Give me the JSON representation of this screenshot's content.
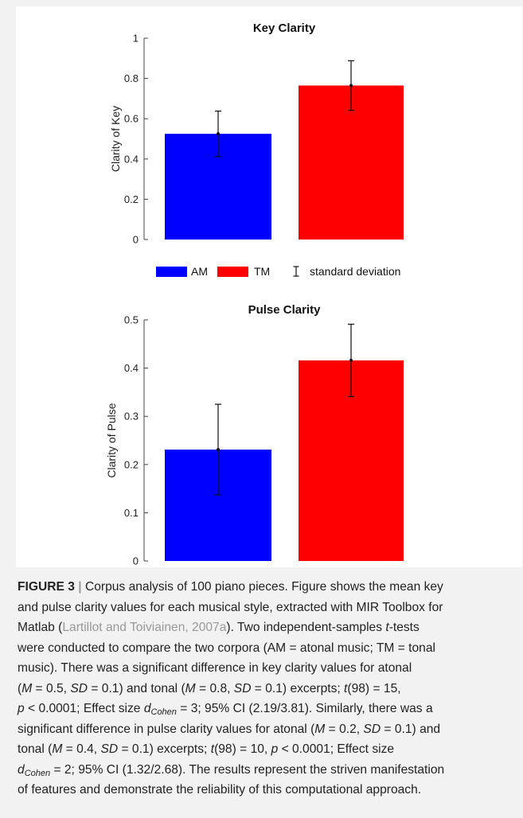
{
  "chart_data": [
    {
      "type": "bar",
      "title": "Key Clarity",
      "xlabel": "",
      "ylabel": "Clarity of Key",
      "categories": [
        "AM",
        "TM"
      ],
      "values": [
        0.525,
        0.765
      ],
      "error": [
        0.113,
        0.123
      ],
      "colors": [
        "#0000ff",
        "#ff0000"
      ],
      "ylim": [
        0,
        1
      ],
      "yticks": [
        0,
        0.2,
        0.4,
        0.6,
        0.8,
        1
      ],
      "ytick_labels": [
        "0",
        "0.2",
        "0.4",
        "0.6",
        "0.8",
        "1"
      ],
      "grid": false
    },
    {
      "type": "bar",
      "title": "Pulse Clarity",
      "xlabel": "",
      "ylabel": "Clarity of Pulse",
      "categories": [
        "AM",
        "TM"
      ],
      "values": [
        0.231,
        0.416
      ],
      "error": [
        0.094,
        0.075
      ],
      "colors": [
        "#0000ff",
        "#ff0000"
      ],
      "ylim": [
        0,
        0.5
      ],
      "yticks": [
        0,
        0.1,
        0.2,
        0.3,
        0.4,
        0.5
      ],
      "ytick_labels": [
        "0",
        "0.1",
        "0.2",
        "0.3",
        "0.4",
        "0.5"
      ],
      "grid": false
    }
  ],
  "legend": {
    "placement": "between panels",
    "items": [
      {
        "label": "AM",
        "color": "#0000ff",
        "kind": "patch"
      },
      {
        "label": "TM",
        "color": "#ff0000",
        "kind": "patch"
      },
      {
        "label": "standard deviation",
        "kind": "errorbar"
      }
    ]
  },
  "caption": {
    "label": "FIGURE 3",
    "separator": "|",
    "lines": [
      [
        {
          "t": " Corpus analysis of 100 piano pieces. Figure shows the mean key"
        }
      ],
      [
        {
          "t": "and pulse clarity values for each musical style, extracted with MIR Toolbox for"
        }
      ],
      [
        {
          "t": "Matlab ("
        },
        {
          "t": "Lartillot and Toiviainen, 2007a",
          "c": "cite"
        },
        {
          "t": "). Two independent-samples "
        },
        {
          "t": "t",
          "c": "i"
        },
        {
          "t": "-tests"
        }
      ],
      [
        {
          "t": "were conducted to compare the two corpora (AM = atonal music; TM = tonal"
        }
      ],
      [
        {
          "t": "music). There was a significant difference in key clarity values for atonal"
        }
      ],
      [
        {
          "t": "("
        },
        {
          "t": "M",
          "c": "i"
        },
        {
          "t": " = 0.5, "
        },
        {
          "t": "SD",
          "c": "i"
        },
        {
          "t": " = 0.1) and tonal ("
        },
        {
          "t": "M",
          "c": "i"
        },
        {
          "t": " = 0.8, "
        },
        {
          "t": "SD",
          "c": "i"
        },
        {
          "t": " = 0.1) excerpts; "
        },
        {
          "t": "t",
          "c": "i"
        },
        {
          "t": "(98) = 15,"
        }
      ],
      [
        {
          "t": "p",
          "c": "i"
        },
        {
          "t": " < 0.0001; Effect size "
        },
        {
          "t": "d",
          "c": "i"
        },
        {
          "t": "Cohen",
          "c": "sub"
        },
        {
          "t": " = 3; 95% CI (2.19/3.81). Similarly, there was a"
        }
      ],
      [
        {
          "t": "significant difference in pulse clarity values for atonal ("
        },
        {
          "t": "M",
          "c": "i"
        },
        {
          "t": " = 0.2, "
        },
        {
          "t": "SD",
          "c": "i"
        },
        {
          "t": " = 0.1) and"
        }
      ],
      [
        {
          "t": "tonal ("
        },
        {
          "t": "M",
          "c": "i"
        },
        {
          "t": " = 0.4, "
        },
        {
          "t": "SD",
          "c": "i"
        },
        {
          "t": " = 0.1) excerpts; "
        },
        {
          "t": "t",
          "c": "i"
        },
        {
          "t": "(98) = 10, "
        },
        {
          "t": "p",
          "c": "i"
        },
        {
          "t": " < 0.0001; Effect size"
        }
      ],
      [
        {
          "t": "d",
          "c": "i"
        },
        {
          "t": "Cohen",
          "c": "sub"
        },
        {
          "t": " = 2; 95% CI (1.32/2.68). The results represent the striven manifestation"
        }
      ],
      [
        {
          "t": "of features and demonstrate the reliability of this computational approach."
        }
      ]
    ]
  }
}
